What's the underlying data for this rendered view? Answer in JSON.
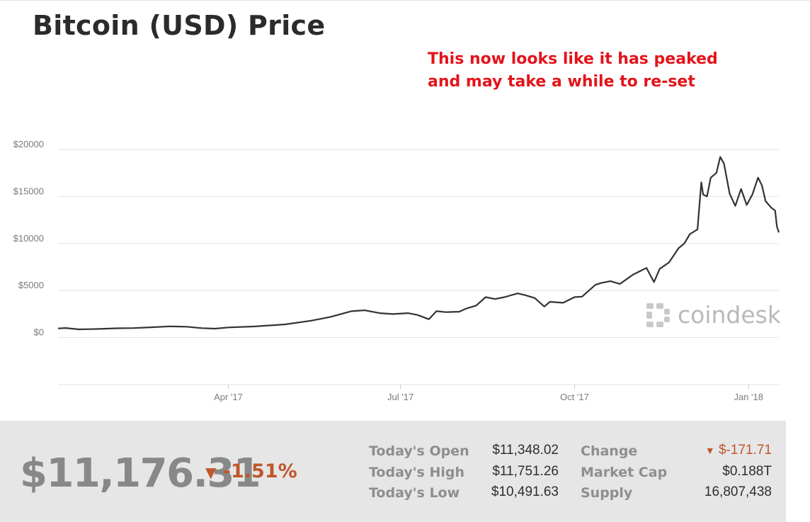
{
  "header": {
    "title": "Bitcoin (USD) Price",
    "annotation_lines": [
      "This now looks like it has peaked",
      "and may take a while to re-set"
    ]
  },
  "watermark": {
    "text": "coindesk",
    "icon": "coindesk-logo-icon"
  },
  "colors": {
    "line": "#333333",
    "annotation": "#e3141b",
    "negative": "#c0562a",
    "footer_bg": "#e6e6e6"
  },
  "chart_data": {
    "type": "line",
    "title": "Bitcoin (USD) Price",
    "xlabel": "",
    "ylabel": "",
    "ylim": [
      -5000,
      20000
    ],
    "xlim": [
      "2017-01-01",
      "2018-01-17"
    ],
    "yticks": [
      {
        "value": 20000,
        "label": "$20000"
      },
      {
        "value": 15000,
        "label": "$15000"
      },
      {
        "value": 10000,
        "label": "$10000"
      },
      {
        "value": 5000,
        "label": "$5000"
      },
      {
        "value": 0,
        "label": "$0"
      }
    ],
    "xticks": [
      {
        "value": "2017-04-01",
        "label": "Apr '17"
      },
      {
        "value": "2017-07-01",
        "label": "Jul '17"
      },
      {
        "value": "2017-10-01",
        "label": "Oct '17"
      },
      {
        "value": "2018-01-01",
        "label": "Jan '18"
      }
    ],
    "grid": true,
    "series": [
      {
        "x": [
          "2017-01-01",
          "2017-01-05",
          "2017-01-12",
          "2017-01-20",
          "2017-02-01",
          "2017-02-10",
          "2017-02-20",
          "2017-03-01",
          "2017-03-10",
          "2017-03-18",
          "2017-03-25",
          "2017-04-01",
          "2017-04-15",
          "2017-05-01",
          "2017-05-15",
          "2017-05-25",
          "2017-06-05",
          "2017-06-12",
          "2017-06-20",
          "2017-06-27",
          "2017-07-05",
          "2017-07-10",
          "2017-07-16",
          "2017-07-20",
          "2017-07-25",
          "2017-08-01",
          "2017-08-05",
          "2017-08-10",
          "2017-08-15",
          "2017-08-20",
          "2017-08-25",
          "2017-09-01",
          "2017-09-05",
          "2017-09-10",
          "2017-09-15",
          "2017-09-18",
          "2017-09-25",
          "2017-10-01",
          "2017-10-05",
          "2017-10-12",
          "2017-10-15",
          "2017-10-20",
          "2017-10-25",
          "2017-11-01",
          "2017-11-06",
          "2017-11-08",
          "2017-11-12",
          "2017-11-15",
          "2017-11-20",
          "2017-11-25",
          "2017-11-28",
          "2017-12-01",
          "2017-12-05",
          "2017-12-07",
          "2017-12-08",
          "2017-12-10",
          "2017-12-12",
          "2017-12-15",
          "2017-12-17",
          "2017-12-19",
          "2017-12-22",
          "2017-12-25",
          "2017-12-28",
          "2017-12-31",
          "2018-01-03",
          "2018-01-06",
          "2018-01-08",
          "2018-01-10",
          "2018-01-13",
          "2018-01-15",
          "2018-01-16",
          "2018-01-17"
        ],
        "y": [
          970,
          1020,
          870,
          900,
          990,
          1010,
          1100,
          1190,
          1150,
          1000,
          950,
          1080,
          1180,
          1400,
          1800,
          2200,
          2800,
          2900,
          2600,
          2500,
          2600,
          2400,
          1950,
          2800,
          2700,
          2750,
          3100,
          3400,
          4300,
          4100,
          4300,
          4700,
          4500,
          4200,
          3300,
          3800,
          3700,
          4300,
          4350,
          5600,
          5800,
          6000,
          5700,
          6700,
          7200,
          7400,
          5900,
          7300,
          8000,
          9500,
          10000,
          11000,
          11500,
          16500,
          15200,
          15000,
          17000,
          17500,
          19200,
          18500,
          15300,
          14000,
          15800,
          14100,
          15200,
          17000,
          16200,
          14500,
          13800,
          13500,
          11800,
          11176
        ]
      }
    ]
  },
  "footer": {
    "price": "$11,176.31",
    "change_pct": "-1.51%",
    "stats": [
      {
        "label": "Today's Open",
        "value": "$11,348.02"
      },
      {
        "label": "Today's High",
        "value": "$11,751.26"
      },
      {
        "label": "Today's Low",
        "value": "$10,491.63"
      },
      {
        "label": "Change",
        "value": "$-171.71"
      },
      {
        "label": "Market Cap",
        "value": "$0.188T"
      },
      {
        "label": "Supply",
        "value": "16,807,438"
      }
    ]
  }
}
